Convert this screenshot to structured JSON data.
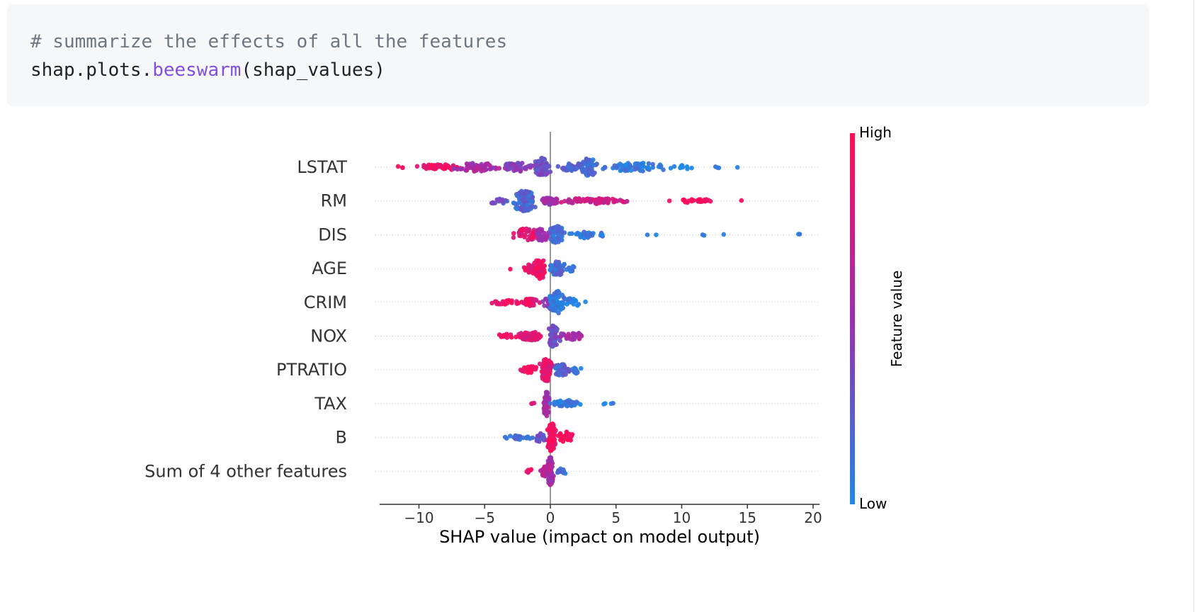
{
  "code": {
    "comment": "# summarize the effects of all the features",
    "call_prefix": "shap.plots.",
    "call_fn": "beeswarm",
    "call_args": "(shap_values)"
  },
  "colors": {
    "high": "#ff0d57",
    "mid": "#9b2fb0",
    "low": "#1e88e5",
    "zero_line": "#999999",
    "code_bg": "#f6f7f9"
  },
  "chart_data": {
    "type": "scatter",
    "subtype": "beeswarm",
    "title": "",
    "xlabel": "SHAP value (impact on model output)",
    "xlim": [
      -13,
      20.5
    ],
    "xticks": [
      -10,
      -5,
      0,
      5,
      10,
      15,
      20
    ],
    "xtick_labels": [
      "−10",
      "−5",
      "0",
      "5",
      "10",
      "15",
      "20"
    ],
    "colorbar": {
      "label": "Feature value",
      "high_label": "High",
      "low_label": "Low"
    },
    "features": [
      {
        "name": "LSTAT",
        "clusters": [
          {
            "c": -11.5,
            "w": 0.5,
            "n": 3,
            "v": 0.95,
            "s": 2
          },
          {
            "c": -8.5,
            "w": 2.0,
            "n": 50,
            "v": 0.9,
            "s": 4
          },
          {
            "c": -5.5,
            "w": 1.6,
            "n": 55,
            "v": 0.55,
            "s": 6
          },
          {
            "c": -2.5,
            "w": 1.2,
            "n": 45,
            "v": 0.45,
            "s": 6
          },
          {
            "c": -0.6,
            "w": 0.6,
            "n": 60,
            "v": 0.35,
            "s": 13
          },
          {
            "c": 1.5,
            "w": 0.7,
            "n": 35,
            "v": 0.2,
            "s": 5
          },
          {
            "c": 2.9,
            "w": 0.6,
            "n": 65,
            "v": 0.15,
            "s": 13
          },
          {
            "c": 6.5,
            "w": 2.3,
            "n": 55,
            "v": 0.05,
            "s": 6
          },
          {
            "c": 10.0,
            "w": 0.8,
            "n": 10,
            "v": 0.0,
            "s": 3
          },
          {
            "c": 13.3,
            "w": 1.3,
            "n": 4,
            "v": 0.0,
            "s": 1
          }
        ]
      },
      {
        "name": "RM",
        "clusters": [
          {
            "c": -4.0,
            "w": 0.7,
            "n": 15,
            "v": 0.3,
            "s": 4
          },
          {
            "c": -2.0,
            "w": 0.8,
            "n": 110,
            "v": 0.2,
            "s": 15
          },
          {
            "c": 0.0,
            "w": 0.7,
            "n": 40,
            "v": 0.5,
            "s": 5
          },
          {
            "c": 3.3,
            "w": 2.2,
            "n": 75,
            "v": 0.72,
            "s": 4
          },
          {
            "c": 9.0,
            "w": 0.2,
            "n": 1,
            "v": 0.95,
            "s": 1
          },
          {
            "c": 11.3,
            "w": 1.3,
            "n": 22,
            "v": 0.98,
            "s": 3
          },
          {
            "c": 14.6,
            "w": 0.1,
            "n": 1,
            "v": 0.98,
            "s": 1
          }
        ]
      },
      {
        "name": "DIS",
        "clusters": [
          {
            "c": -1.8,
            "w": 0.8,
            "n": 45,
            "v": 0.85,
            "s": 9
          },
          {
            "c": -0.6,
            "w": 0.5,
            "n": 30,
            "v": 0.55,
            "s": 9
          },
          {
            "c": 0.5,
            "w": 0.5,
            "n": 60,
            "v": 0.15,
            "s": 13
          },
          {
            "c": 2.8,
            "w": 1.3,
            "n": 28,
            "v": 0.05,
            "s": 5
          },
          {
            "c": 7.0,
            "w": 1.2,
            "n": 2,
            "v": 0.0,
            "s": 1
          },
          {
            "c": 11.5,
            "w": 1.4,
            "n": 3,
            "v": 0.0,
            "s": 1
          },
          {
            "c": 18.8,
            "w": 0.3,
            "n": 2,
            "v": 0.0,
            "s": 1
          }
        ]
      },
      {
        "name": "AGE",
        "clusters": [
          {
            "c": -3.0,
            "w": 0.1,
            "n": 1,
            "v": 0.9,
            "s": 1
          },
          {
            "c": -1.5,
            "w": 0.6,
            "n": 25,
            "v": 0.85,
            "s": 6
          },
          {
            "c": -0.8,
            "w": 0.4,
            "n": 70,
            "v": 0.9,
            "s": 15
          },
          {
            "c": 0.6,
            "w": 0.6,
            "n": 50,
            "v": 0.15,
            "s": 10
          },
          {
            "c": 1.6,
            "w": 0.4,
            "n": 10,
            "v": 0.05,
            "s": 4
          }
        ]
      },
      {
        "name": "CRIM",
        "clusters": [
          {
            "c": -3.5,
            "w": 1.0,
            "n": 20,
            "v": 0.95,
            "s": 3
          },
          {
            "c": -1.6,
            "w": 0.7,
            "n": 40,
            "v": 0.9,
            "s": 5
          },
          {
            "c": 0.0,
            "w": 0.5,
            "n": 30,
            "v": 0.5,
            "s": 12
          },
          {
            "c": 0.5,
            "w": 0.5,
            "n": 60,
            "v": 0.08,
            "s": 16
          },
          {
            "c": 1.7,
            "w": 0.6,
            "n": 18,
            "v": 0.05,
            "s": 6
          },
          {
            "c": 2.6,
            "w": 0.1,
            "n": 1,
            "v": 0.0,
            "s": 1
          }
        ]
      },
      {
        "name": "NOX",
        "clusters": [
          {
            "c": -3.3,
            "w": 0.8,
            "n": 10,
            "v": 0.95,
            "s": 3
          },
          {
            "c": -1.5,
            "w": 0.9,
            "n": 55,
            "v": 0.85,
            "s": 6
          },
          {
            "c": 0.2,
            "w": 0.4,
            "n": 55,
            "v": 0.3,
            "s": 15
          },
          {
            "c": 1.5,
            "w": 0.8,
            "n": 35,
            "v": 0.55,
            "s": 6
          }
        ]
      },
      {
        "name": "PTRATIO",
        "clusters": [
          {
            "c": -1.5,
            "w": 0.6,
            "n": 25,
            "v": 0.95,
            "s": 5
          },
          {
            "c": -0.3,
            "w": 0.4,
            "n": 75,
            "v": 0.85,
            "s": 16
          },
          {
            "c": 0.9,
            "w": 0.6,
            "n": 40,
            "v": 0.2,
            "s": 8
          },
          {
            "c": 2.0,
            "w": 0.4,
            "n": 12,
            "v": 0.05,
            "s": 5
          }
        ]
      },
      {
        "name": "TAX",
        "clusters": [
          {
            "c": -1.3,
            "w": 0.2,
            "n": 3,
            "v": 0.85,
            "s": 3
          },
          {
            "c": -0.3,
            "w": 0.2,
            "n": 55,
            "v": 0.55,
            "s": 18
          },
          {
            "c": 1.3,
            "w": 1.0,
            "n": 40,
            "v": 0.05,
            "s": 5
          },
          {
            "c": 4.3,
            "w": 0.5,
            "n": 4,
            "v": 0.0,
            "s": 1
          }
        ]
      },
      {
        "name": "B",
        "clusters": [
          {
            "c": -2.3,
            "w": 0.9,
            "n": 25,
            "v": 0.12,
            "s": 3
          },
          {
            "c": -0.8,
            "w": 0.4,
            "n": 25,
            "v": 0.3,
            "s": 6
          },
          {
            "c": 0.1,
            "w": 0.3,
            "n": 90,
            "v": 0.95,
            "s": 20
          },
          {
            "c": 1.2,
            "w": 0.5,
            "n": 30,
            "v": 0.92,
            "s": 8
          }
        ]
      },
      {
        "name": "Sum of 4 other features",
        "clusters": [
          {
            "c": -1.6,
            "w": 0.3,
            "n": 6,
            "v": 0.9,
            "s": 3
          },
          {
            "c": -0.4,
            "w": 0.3,
            "n": 25,
            "v": 0.6,
            "s": 7
          },
          {
            "c": 0.0,
            "w": 0.2,
            "n": 70,
            "v": 0.55,
            "s": 20
          },
          {
            "c": 0.9,
            "w": 0.4,
            "n": 12,
            "v": 0.1,
            "s": 4
          }
        ]
      }
    ]
  }
}
